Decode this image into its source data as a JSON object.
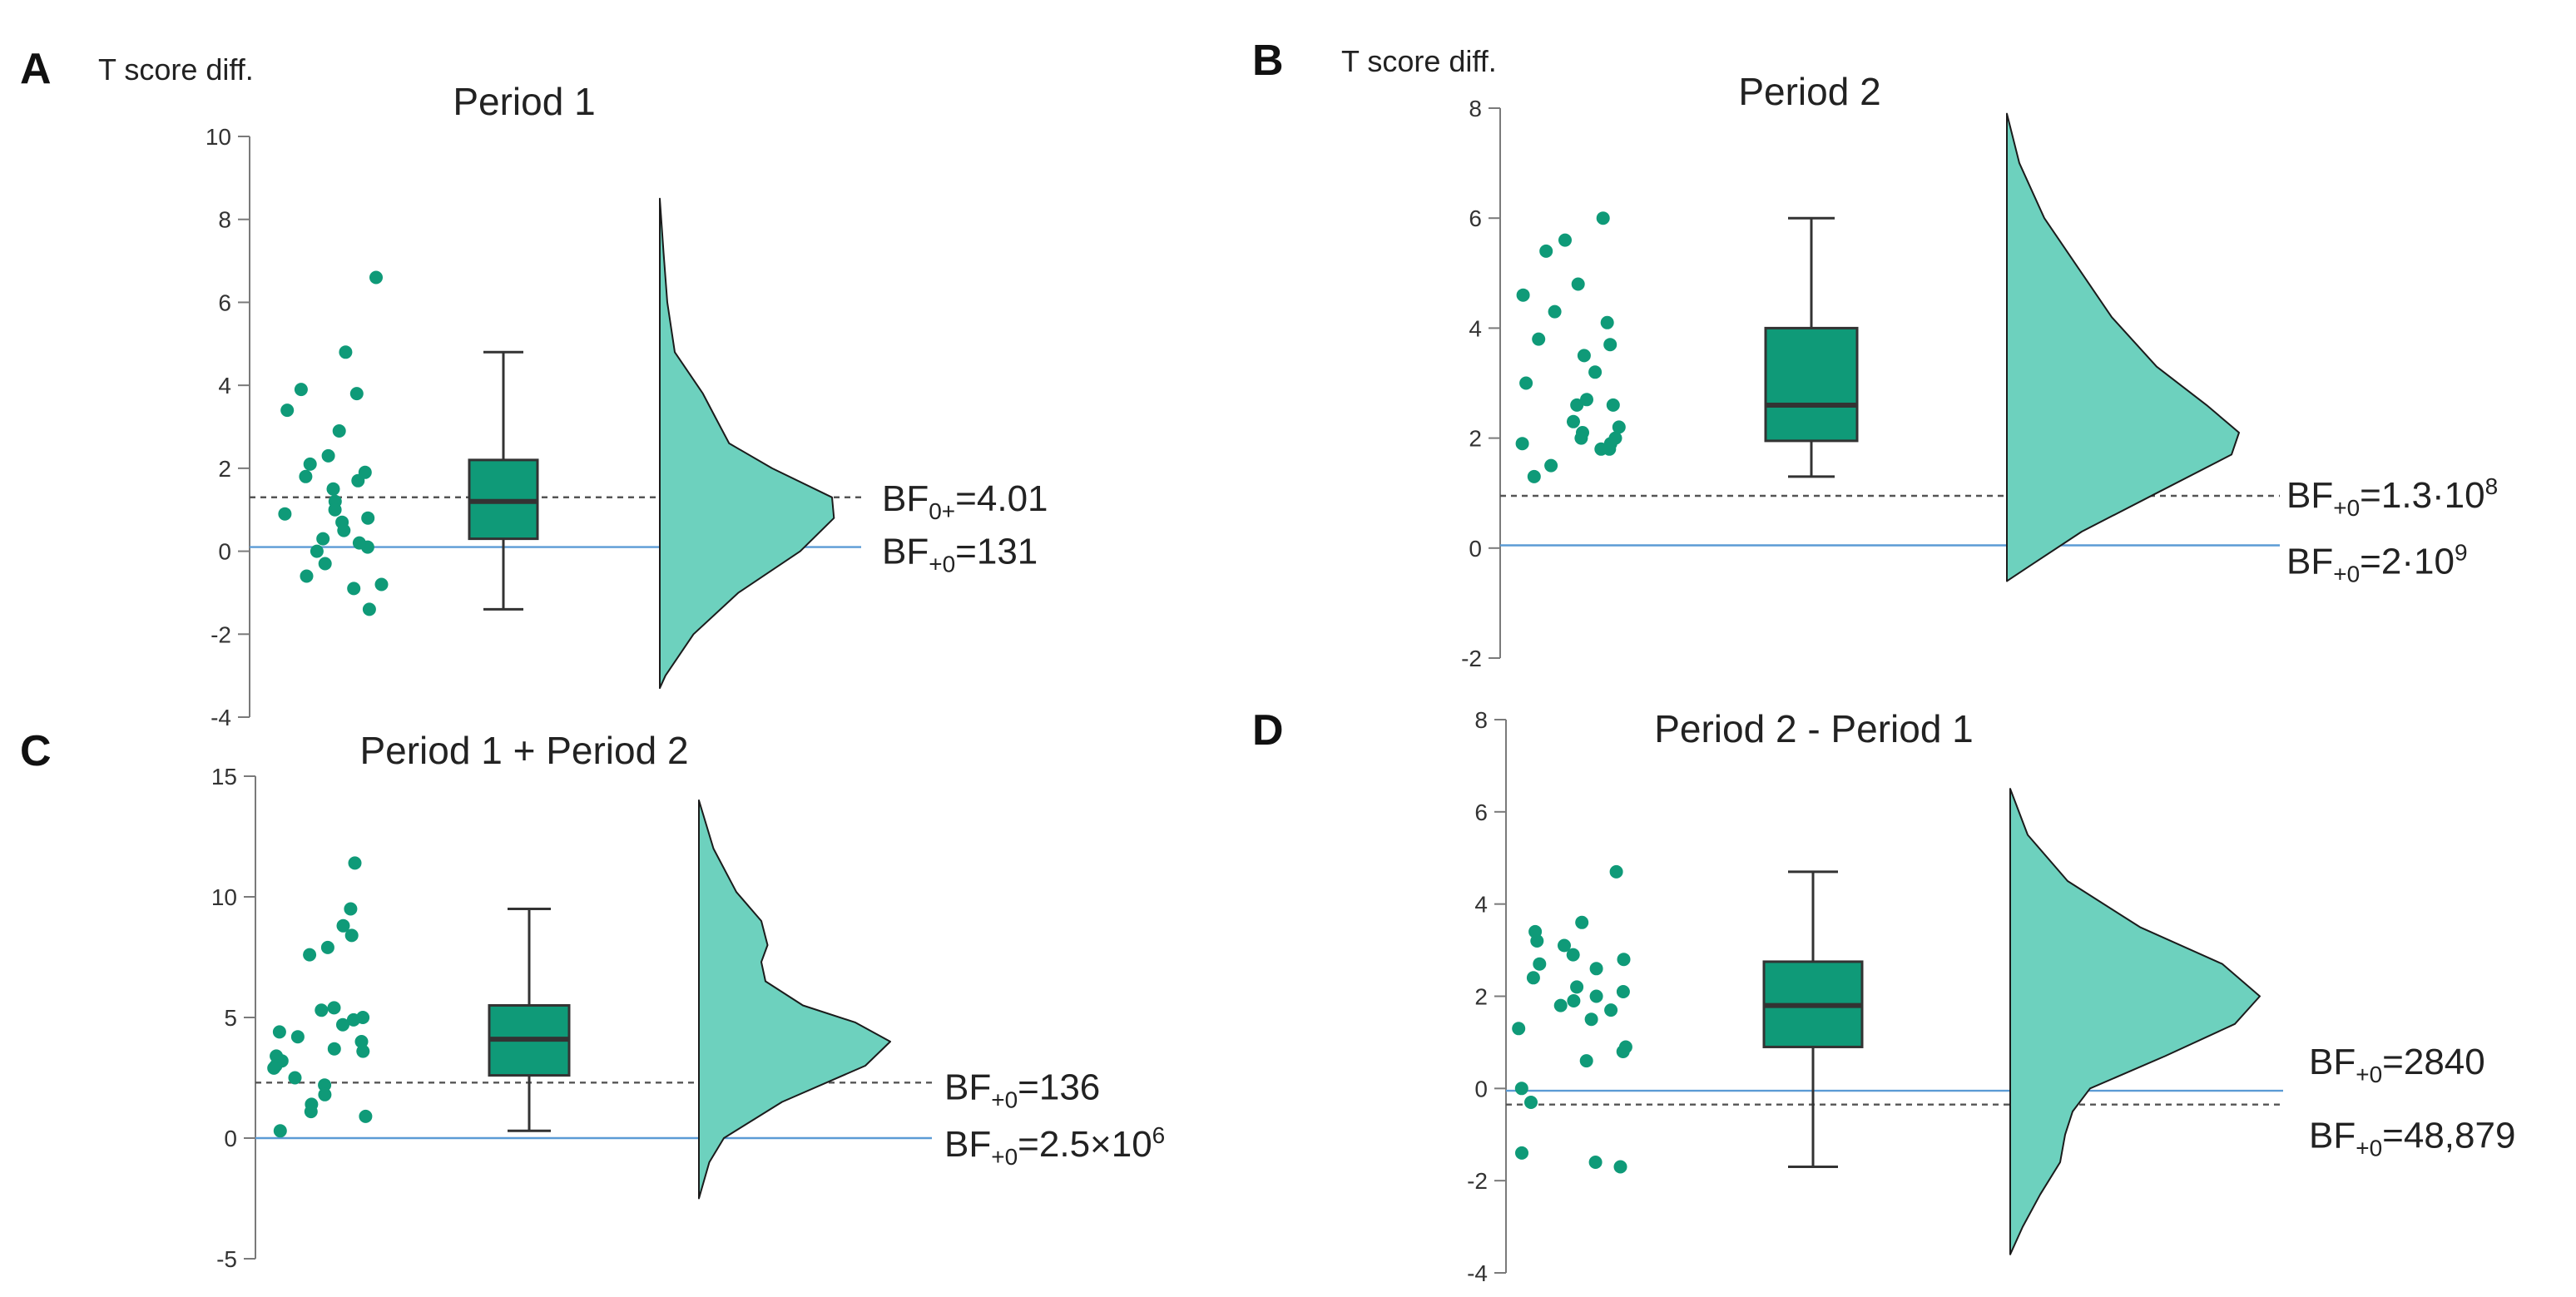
{
  "figure": {
    "description_panels": [
      "A",
      "B",
      "C",
      "D"
    ]
  },
  "chart_data": [
    {
      "type": "raincloud",
      "panel_label": "A",
      "title": "Period 1",
      "ylabel": "T score diff.",
      "ylim": [
        -4,
        10
      ],
      "yticks": [
        -4,
        -2,
        0,
        2,
        4,
        6,
        8,
        10
      ],
      "points": [
        3.9,
        3.8,
        2.9,
        2.3,
        2.1,
        1.9,
        1.7,
        1.5,
        1.2,
        1.0,
        0.9,
        0.7,
        0.5,
        0.3,
        0.1,
        0.0,
        -0.3,
        -0.6,
        -0.8,
        -0.9,
        -1.4,
        0.8,
        3.4,
        4.8,
        6.6,
        1.8,
        0.2
      ],
      "box": {
        "min": -1.4,
        "q1": 0.3,
        "median": 1.2,
        "q3": 2.2,
        "max": 4.8
      },
      "density": [
        [
          -3.3,
          0
        ],
        [
          -3.0,
          0.03
        ],
        [
          -2.0,
          0.18
        ],
        [
          -1.0,
          0.42
        ],
        [
          0.0,
          0.75
        ],
        [
          0.8,
          0.93
        ],
        [
          1.3,
          0.92
        ],
        [
          2.0,
          0.6
        ],
        [
          2.6,
          0.37
        ],
        [
          3.2,
          0.3
        ],
        [
          3.8,
          0.23
        ],
        [
          4.8,
          0.08
        ],
        [
          6.0,
          0.04
        ],
        [
          7.2,
          0.02
        ],
        [
          8.5,
          0
        ]
      ],
      "bf_lines": [
        {
          "value": 1.3,
          "style": "dashed",
          "label_base": "BF",
          "label_sub": "0+",
          "label_val": "=4.01",
          "label_sup": ""
        },
        {
          "value": 0.1,
          "style": "solid",
          "label_base": "BF",
          "label_sub": "+0",
          "label_val": "=131",
          "label_sup": ""
        }
      ]
    },
    {
      "type": "raincloud",
      "panel_label": "B",
      "title": "Period 2",
      "ylabel": "T score diff.",
      "ylim": [
        -2,
        8
      ],
      "yticks": [
        -2,
        0,
        2,
        4,
        6,
        8
      ],
      "points": [
        6.0,
        5.6,
        5.4,
        4.8,
        4.6,
        4.3,
        4.1,
        3.8,
        3.7,
        3.5,
        3.2,
        3.0,
        2.7,
        2.6,
        2.6,
        2.3,
        2.1,
        2.0,
        2.0,
        1.9,
        1.9,
        1.8,
        1.8,
        1.5,
        1.3,
        2.2
      ],
      "box": {
        "min": 1.3,
        "q1": 1.95,
        "median": 2.6,
        "q3": 4.0,
        "max": 6.0
      },
      "density": [
        [
          -0.6,
          0
        ],
        [
          -0.3,
          0.1
        ],
        [
          0.3,
          0.3
        ],
        [
          1.0,
          0.6
        ],
        [
          1.7,
          0.9
        ],
        [
          2.1,
          0.93
        ],
        [
          2.6,
          0.8
        ],
        [
          3.3,
          0.6
        ],
        [
          4.2,
          0.42
        ],
        [
          5.0,
          0.3
        ],
        [
          6.0,
          0.15
        ],
        [
          7.0,
          0.05
        ],
        [
          7.9,
          0
        ]
      ],
      "bf_lines": [
        {
          "value": 0.95,
          "style": "dashed",
          "label_base": "BF",
          "label_sub": "+0",
          "label_val": "=1.3·10",
          "label_sup": "8"
        },
        {
          "value": 0.05,
          "style": "solid",
          "label_base": "BF",
          "label_sub": "+0",
          "label_val": "=2·10",
          "label_sup": "9"
        }
      ]
    },
    {
      "type": "raincloud",
      "panel_label": "C",
      "title": "Period 1 + Period 2",
      "ylabel": "",
      "ylim": [
        -5,
        15
      ],
      "yticks": [
        -5,
        0,
        5,
        10,
        15
      ],
      "points": [
        11.4,
        9.5,
        8.8,
        8.4,
        7.9,
        7.6,
        5.4,
        5.3,
        5.0,
        4.7,
        4.4,
        4.2,
        4.0,
        3.7,
        3.6,
        3.4,
        3.2,
        3.0,
        2.9,
        2.5,
        2.2,
        1.8,
        1.4,
        1.1,
        0.9,
        0.3,
        4.9
      ],
      "box": {
        "min": 0.3,
        "q1": 2.6,
        "median": 4.1,
        "q3": 5.5,
        "max": 9.5
      },
      "density": [
        [
          -2.5,
          0
        ],
        [
          -1.0,
          0.05
        ],
        [
          0.0,
          0.12
        ],
        [
          1.5,
          0.4
        ],
        [
          3.0,
          0.8
        ],
        [
          4.0,
          0.92
        ],
        [
          4.8,
          0.75
        ],
        [
          5.5,
          0.5
        ],
        [
          6.5,
          0.32
        ],
        [
          7.3,
          0.3
        ],
        [
          8.0,
          0.33
        ],
        [
          9.0,
          0.3
        ],
        [
          10.2,
          0.18
        ],
        [
          12.0,
          0.07
        ],
        [
          14.0,
          0
        ]
      ],
      "bf_lines": [
        {
          "value": 2.3,
          "style": "dashed",
          "label_base": "BF",
          "label_sub": "+0",
          "label_val": "=136",
          "label_sup": ""
        },
        {
          "value": 0.0,
          "style": "solid",
          "label_base": "BF",
          "label_sub": "+0",
          "label_val": "=2.5×10",
          "label_sup": "6"
        }
      ]
    },
    {
      "type": "raincloud",
      "panel_label": "D",
      "title": "Period 2 - Period 1",
      "ylabel": "",
      "ylim": [
        -4,
        8
      ],
      "yticks": [
        -4,
        -2,
        0,
        2,
        4,
        6,
        8
      ],
      "points": [
        4.7,
        3.6,
        3.4,
        3.2,
        3.1,
        2.9,
        2.7,
        2.6,
        2.4,
        2.2,
        2.1,
        2.0,
        1.9,
        1.8,
        1.7,
        1.5,
        1.3,
        0.9,
        0.8,
        0.6,
        0.0,
        -0.3,
        -1.4,
        -1.6,
        -1.7,
        2.8
      ],
      "box": {
        "min": -1.7,
        "q1": 0.9,
        "median": 1.8,
        "q3": 2.75,
        "max": 4.7
      },
      "density": [
        [
          -3.6,
          0
        ],
        [
          -3.0,
          0.05
        ],
        [
          -2.3,
          0.12
        ],
        [
          -1.6,
          0.2
        ],
        [
          -1.0,
          0.22
        ],
        [
          -0.5,
          0.25
        ],
        [
          0.0,
          0.32
        ],
        [
          0.7,
          0.62
        ],
        [
          1.4,
          0.9
        ],
        [
          2.0,
          1.0
        ],
        [
          2.7,
          0.85
        ],
        [
          3.5,
          0.52
        ],
        [
          4.5,
          0.23
        ],
        [
          5.5,
          0.07
        ],
        [
          6.5,
          0
        ]
      ],
      "bf_lines": [
        {
          "value": -0.05,
          "style": "solid",
          "label_base": "BF",
          "label_sub": "+0",
          "label_val": "=2840",
          "label_sup": ""
        },
        {
          "value": -0.35,
          "style": "dashed",
          "label_base": "BF",
          "label_sub": "+0",
          "label_val": "=48,879",
          "label_sup": ""
        }
      ]
    }
  ],
  "colors": {
    "points": "#0f9a78",
    "box_fill": "#0f9a78",
    "cloud_fill": "#6dd1be",
    "axis": "#7a7a7a",
    "solid_line": "#5b9bd5",
    "dashed_line": "#555555",
    "text": "#222222"
  }
}
